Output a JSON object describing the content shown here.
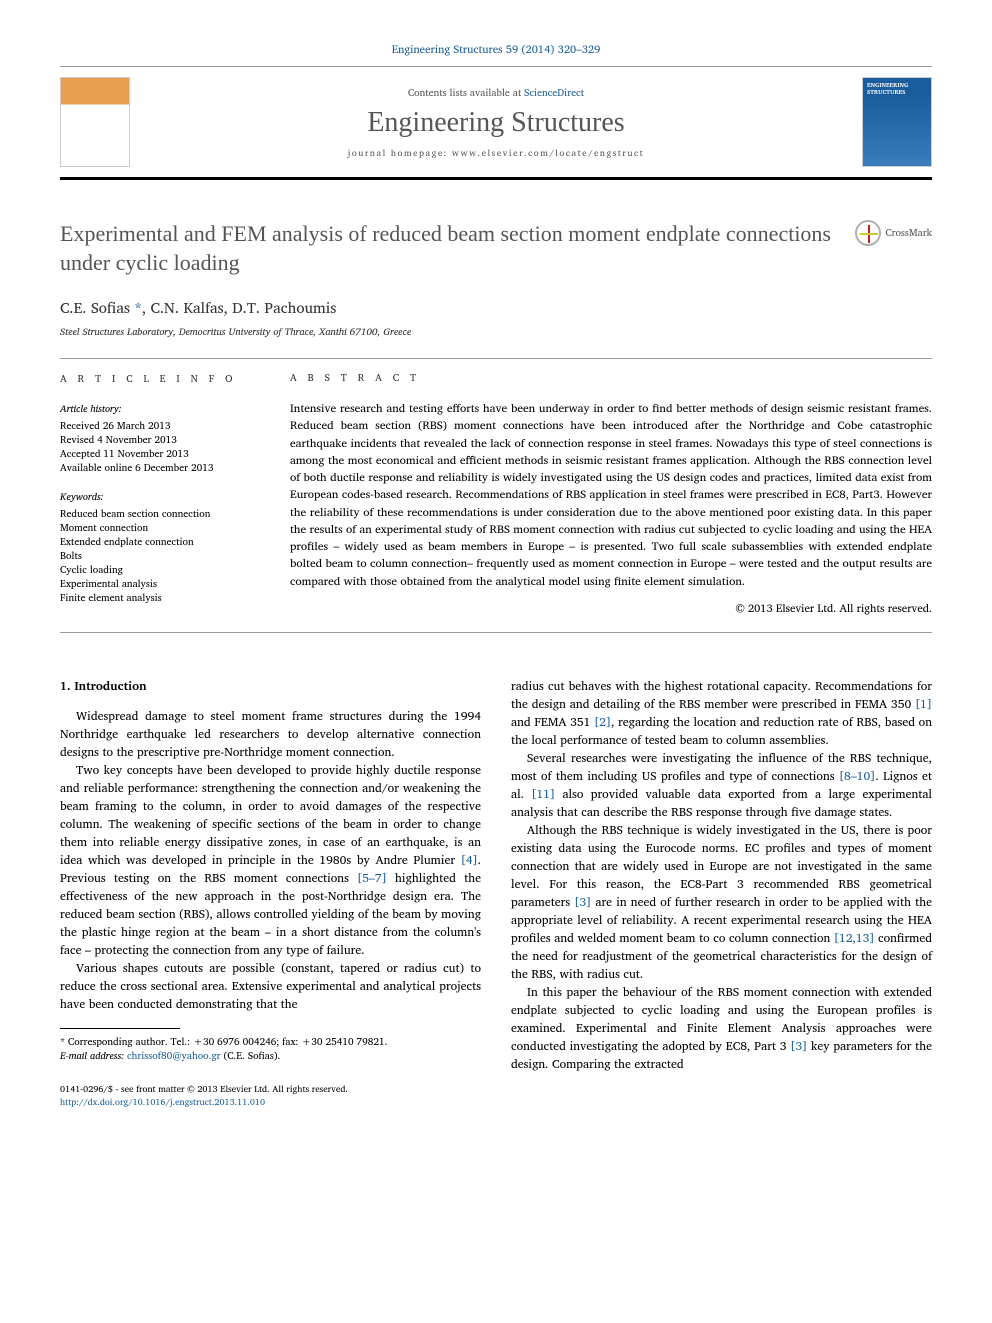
{
  "journal_ref": "Engineering Structures 59 (2014) 320–329",
  "contents_line_prefix": "Contents lists available at ",
  "contents_link": "ScienceDirect",
  "journal_name": "Engineering Structures",
  "homepage_prefix": "journal homepage: ",
  "homepage_url": "www.elsevier.com/locate/engstruct",
  "crossmark_label": "CrossMark",
  "title": "Experimental and FEM analysis of reduced beam section moment endplate connections under cyclic loading",
  "authors": "C.E. Sofias",
  "authors_rest": ", C.N. Kalfas, D.T. Pachoumis",
  "corr_marker": "*",
  "affiliation": "Steel Structures Laboratory, Democritus University of Thrace, Xanthi 67100, Greece",
  "article_info_label": "a r t i c l e   i n f o",
  "abstract_label": "a b s t r a c t",
  "history_label": "Article history:",
  "history": [
    "Received 26 March 2013",
    "Revised 4 November 2013",
    "Accepted 11 November 2013",
    "Available online 6 December 2013"
  ],
  "keywords_label": "Keywords:",
  "keywords": [
    "Reduced beam section connection",
    "Moment connection",
    "Extended endplate connection",
    "Bolts",
    "Cyclic loading",
    "Experimental analysis",
    "Finite element analysis"
  ],
  "abstract_text": "Intensive research and testing efforts have been underway in order to find better methods of design seismic resistant frames. Reduced beam section (RBS) moment connections have been introduced after the Northridge and Cobe catastrophic earthquake incidents that revealed the lack of connection response in steel frames. Nowadays this type of steel connections is among the most economical and efficient methods in seismic resistant frames application. Although the RBS connection level of both ductile response and reliability is widely investigated using the US design codes and practices, limited data exist from European codes-based research. Recommendations of RBS application in steel frames were prescribed in EC8, Part3. However the reliability of these recommendations is under consideration due to the above mentioned poor existing data. In this paper the results of an experimental study of RBS moment connection with radius cut subjected to cyclic loading and using the HEA profiles – widely used as beam members in Europe – is presented. Two full scale subassemblies with extended endplate bolted beam to column connection– frequently used as moment connection in Europe – were tested and the output results are compared with those obtained from the analytical model using finite element simulation.",
  "copyright": "© 2013 Elsevier Ltd. All rights reserved.",
  "section1_heading": "1. Introduction",
  "col1": {
    "p1": "Widespread damage to steel moment frame structures during the 1994 Northridge earthquake led researchers to develop alternative connection designs to the prescriptive pre-Northridge moment connection.",
    "p2a": "Two key concepts have been developed to provide highly ductile response and reliable performance: strengthening the connection and/or weakening the beam framing to the column, in order to avoid damages of the respective column. The weakening of specific sections of the beam in order to change them into reliable energy dissipative zones, in case of an earthquake, is an idea which was developed in principle in the 1980s by Andre Plumier ",
    "p2_cite1": "[4]",
    "p2b": ". Previous testing on the RBS moment connections ",
    "p2_cite2": "[5–7]",
    "p2c": " highlighted the effectiveness of the new approach in the post-Northridge design era. The reduced beam section (RBS), allows controlled yielding of the beam by moving the plastic hinge region at the beam – in a short distance from the column's face – protecting the connection from any type of failure.",
    "p3": "Various shapes cutouts are possible (constant, tapered or radius cut) to reduce the cross sectional area. Extensive experimental and analytical projects have been conducted demonstrating that the"
  },
  "col2": {
    "p1a": "radius cut behaves with the highest rotational capacity. Recommendations for the design and detailing of the RBS member were prescribed in FEMA 350 ",
    "p1_cite1": "[1]",
    "p1b": " and FEMA 351 ",
    "p1_cite2": "[2]",
    "p1c": ", regarding the location and reduction rate of RBS, based on the local performance of tested beam to column assemblies.",
    "p2a": "Several researches were investigating the influence of the RBS technique, most of them including US profiles and type of connections ",
    "p2_cite1": "[8–10]",
    "p2b": ". Lignos et al. ",
    "p2_cite2": "[11]",
    "p2c": " also provided valuable data exported from a large experimental analysis that can describe the RBS response through five damage states.",
    "p3a": "Although the RBS technique is widely investigated in the US, there is poor existing data using the Eurocode norms. EC profiles and types of moment connection that are widely used in Europe are not investigated in the same level. For this reason, the EC8-Part 3 recommended RBS geometrical parameters ",
    "p3_cite1": "[3]",
    "p3b": " are in need of further research in order to be applied with the appropriate level of reliability. A recent experimental research using the HEA profiles and welded moment beam to co column connection ",
    "p3_cite2": "[12,13]",
    "p3c": " confirmed the need for readjustment of the geometrical characteristics for the design of the RBS, with radius cut.",
    "p4a": "In this paper the behaviour of the RBS moment connection with extended endplate subjected to cyclic loading and using the European profiles is examined. Experimental and Finite Element Analysis approaches were conducted investigating the adopted by EC8, Part 3 ",
    "p4_cite1": "[3]",
    "p4b": " key parameters for the design. Comparing the extracted"
  },
  "footnote": {
    "corr_prefix": "* Corresponding author. Tel.: +30 6976 004246; fax: +30 25410 79821.",
    "email_label": "E-mail address:",
    "email": "chrissof80@yahoo.gr",
    "email_suffix": "(C.E. Sofias)."
  },
  "footer": {
    "issn_line": "0141-0296/$ - see front matter © 2013 Elsevier Ltd. All rights reserved.",
    "doi": "http://dx.doi.org/10.1016/j.engstruct.2013.11.010"
  }
}
